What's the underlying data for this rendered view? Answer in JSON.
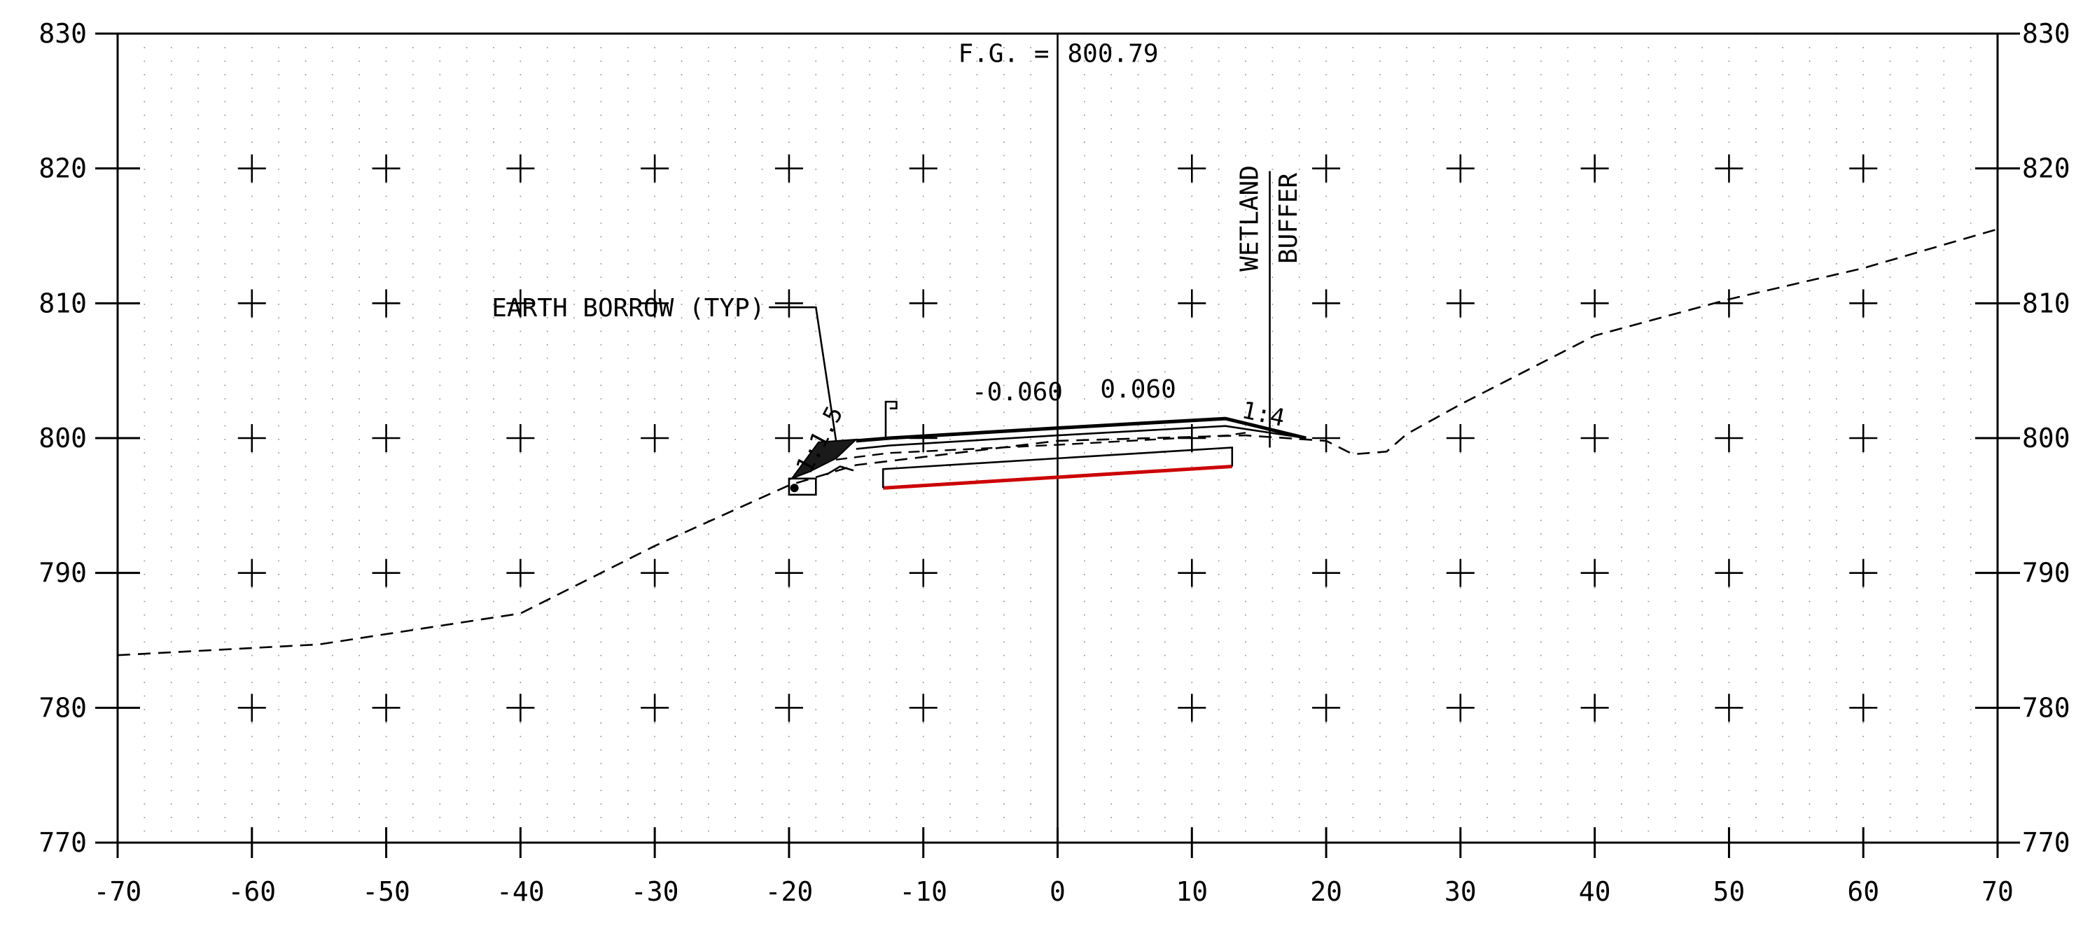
{
  "chart_data": {
    "type": "line",
    "title": "",
    "xlabel": "",
    "ylabel": "",
    "xlim": [
      -70,
      70
    ],
    "ylim": [
      770,
      830
    ],
    "x_ticks": [
      -70,
      -60,
      -50,
      -40,
      -30,
      -20,
      -10,
      0,
      10,
      20,
      30,
      40,
      50,
      60,
      70
    ],
    "x_tick_labels": [
      "-70",
      "-60",
      "-50",
      "-40",
      "-30",
      "-20",
      "-10",
      "0",
      "10",
      "20",
      "30",
      "40",
      "50",
      "60",
      "70"
    ],
    "y_ticks": [
      770,
      780,
      790,
      800,
      810,
      820,
      830
    ],
    "y_tick_labels": [
      "770",
      "780",
      "790",
      "800",
      "810",
      "820",
      "830"
    ],
    "grid": "dotted every 2 ft, crosses every 10 ft",
    "series": [
      {
        "style": "dashed",
        "points": [
          [
            -70,
            783.9
          ],
          [
            -55,
            784.7
          ],
          [
            -40,
            787.0
          ],
          [
            -30,
            792.0
          ],
          [
            -20,
            796.5
          ],
          [
            -15,
            798.0
          ],
          [
            0,
            799.8
          ],
          [
            14,
            800.2
          ],
          [
            20,
            799.8
          ],
          [
            22,
            798.8
          ],
          [
            24.5,
            799.0
          ],
          [
            26,
            800.3
          ],
          [
            30,
            802.5
          ],
          [
            40,
            807.6
          ],
          [
            50,
            810.3
          ],
          [
            60,
            812.6
          ],
          [
            70,
            815.5
          ]
        ]
      },
      {
        "style": "solid",
        "points": [
          [
            -15,
            799.8
          ],
          [
            -12.5,
            800.0
          ],
          [
            0,
            800.75
          ],
          [
            12.5,
            801.45
          ],
          [
            18.5,
            800.0
          ]
        ]
      },
      {
        "style": "solid",
        "color": "#cc0000",
        "points": [
          [
            -13,
            796.3
          ],
          [
            13,
            797.9
          ]
        ]
      }
    ],
    "annotations": {
      "fg_label": "F.G. =",
      "fg_value": "800.79",
      "earth_borrow": "EARTH BORROW (TYP)",
      "wetland": "WETLAND",
      "buffer": "BUFFER",
      "slope_left": "-0.060",
      "slope_right": "0.060",
      "side_slope_left": "1:1.5",
      "side_slope_right": "1:4"
    }
  }
}
